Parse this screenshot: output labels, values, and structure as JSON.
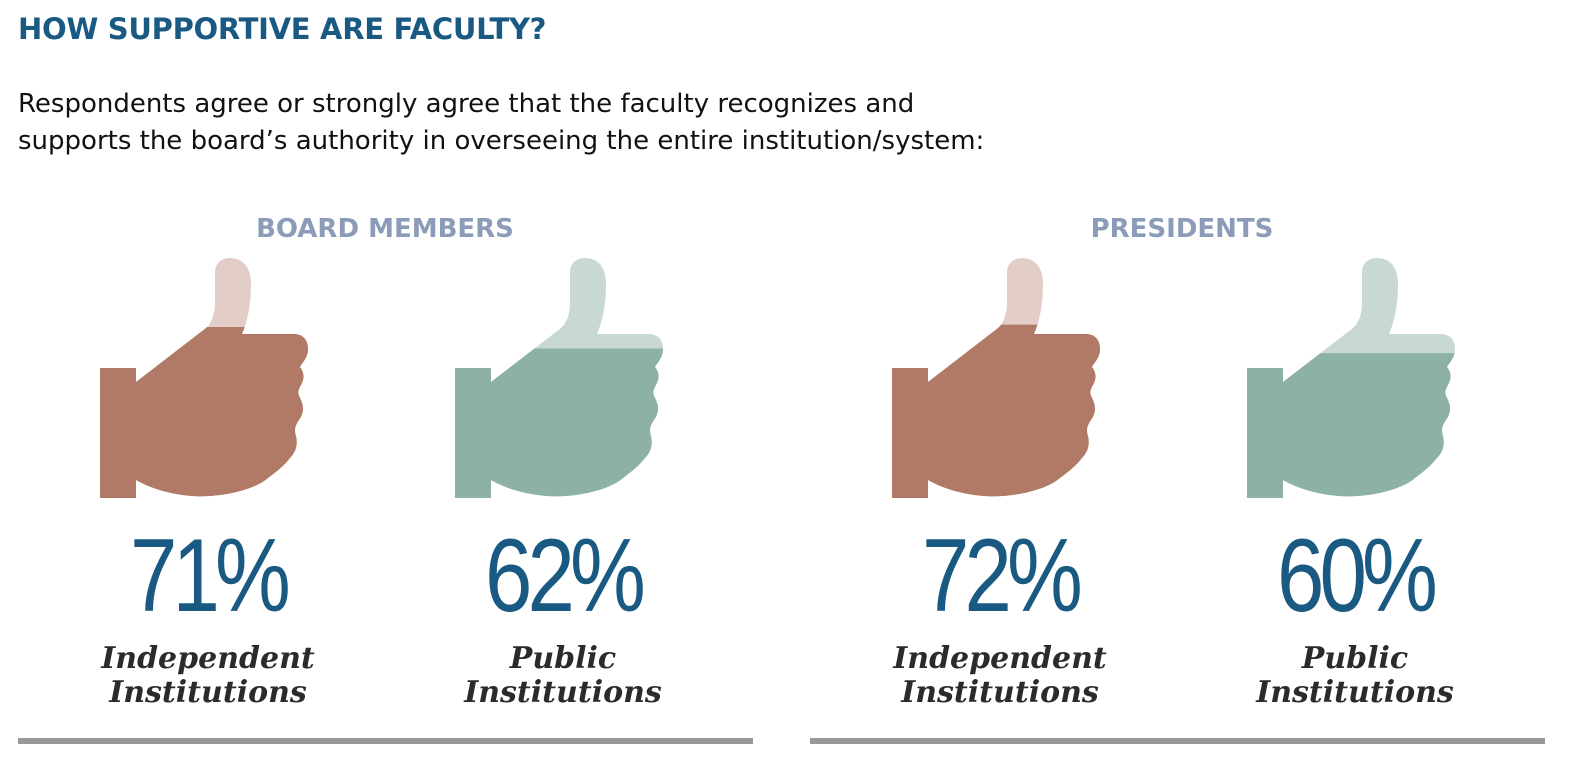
{
  "title": "HOW SUPPORTIVE ARE FACULTY?",
  "subtitle_line1": "Respondents agree or strongly agree that the faculty recognizes and",
  "subtitle_line2": "supports the board’s authority in overseeing the entire institution/system:",
  "colors": {
    "title": "#1a5a82",
    "group_title": "#8c9bb7",
    "independent": "#b07a66",
    "independent_light": "#e3cec7",
    "public": "#8db1a4",
    "public_light": "#c8d9d2",
    "rule": "#999999"
  },
  "chart_data": {
    "type": "bar",
    "categories": [
      "Independent Institutions",
      "Public Institutions"
    ],
    "series": [
      {
        "name": "BOARD MEMBERS",
        "values": [
          71,
          62
        ]
      },
      {
        "name": "PRESIDENTS",
        "values": [
          72,
          60
        ]
      }
    ],
    "unit": "%",
    "ylim": [
      0,
      100
    ]
  },
  "groups": [
    {
      "title": "BOARD MEMBERS",
      "items": [
        {
          "value": "71%",
          "fill": 0.71,
          "label1": "Independent",
          "label2": "Institutions",
          "type": "independent"
        },
        {
          "value": "62%",
          "fill": 0.62,
          "label1": "Public",
          "label2": "Institutions",
          "type": "public"
        }
      ]
    },
    {
      "title": "PRESIDENTS",
      "items": [
        {
          "value": "72%",
          "fill": 0.72,
          "label1": "Independent",
          "label2": "Institutions",
          "type": "independent"
        },
        {
          "value": "60%",
          "fill": 0.6,
          "label1": "Public",
          "label2": "Institutions",
          "type": "public"
        }
      ]
    }
  ]
}
